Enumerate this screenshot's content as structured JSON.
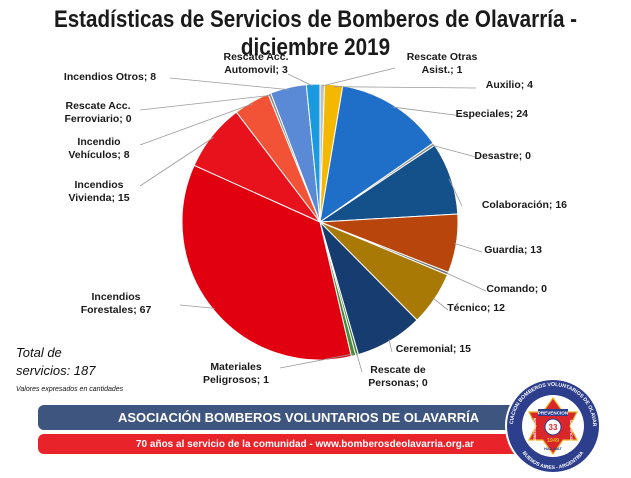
{
  "header": {
    "title": "Estadísticas de Servicios de Bomberos de Olavarría - diciembre 2019"
  },
  "summary": {
    "total_line1": "Total de",
    "total_line2": "servicios: 187",
    "note": "Valores expresados en cantidades"
  },
  "footer": {
    "association": "ASOCIACIÓN BOMBEROS VOLUNTARIOS DE OLAVARRÍA",
    "tagline": "70 años al servicio de la comunidad - www.bomberosdeolavarria.org.ar"
  },
  "logo": {
    "ring_text": "ASOCIACION BOMBEROS VOLUNTARIOS DE OLAVARRIA",
    "lower_text": "BUENOS AIRES - ARGENTINA",
    "left_band": "ABNEGACION",
    "right_band": "SACRIFICIO",
    "top_band": "PREVENCION",
    "year": "1949",
    "bottom_band": "HAZ-MAT",
    "center_number": "33",
    "colors": {
      "navy": "#2d3e8c",
      "red": "#d9262b",
      "gold": "#e6b422"
    }
  },
  "chart_data": {
    "type": "pie",
    "title": "Estadísticas de Servicios de Bomberos de Olavarría - diciembre 2019",
    "slices": [
      {
        "label": "Rescate Otras Asist.; 1",
        "name": "Rescate Otras Asist.",
        "value": 1,
        "color": "#c0c0c0"
      },
      {
        "label": "Auxilio; 4",
        "name": "Auxilio",
        "value": 4,
        "color": "#f5b800"
      },
      {
        "label": "Especiales; 24",
        "name": "Especiales",
        "value": 24,
        "color": "#1f6fc9"
      },
      {
        "label": "Desastre; 0",
        "name": "Desastre",
        "value": 0,
        "color": "#8a8a8a"
      },
      {
        "label": "Colaboración; 16",
        "name": "Colaboración",
        "value": 16,
        "color": "#14508a"
      },
      {
        "label": "Guardia; 13",
        "name": "Guardia",
        "value": 13,
        "color": "#b8460c"
      },
      {
        "label": "Comando; 0",
        "name": "Comando",
        "value": 0,
        "color": "#707070"
      },
      {
        "label": "Técnico; 12",
        "name": "Técnico",
        "value": 12,
        "color": "#a87a05"
      },
      {
        "label": "Ceremonial; 15",
        "name": "Ceremonial",
        "value": 15,
        "color": "#173c70"
      },
      {
        "label": "Rescate de Personas; 0",
        "name": "Rescate de Personas",
        "value": 0,
        "color": "#3a7a3a"
      },
      {
        "label": "Materiales Peligrosos; 1",
        "name": "Materiales Peligrosos",
        "value": 1,
        "color": "#4a8a3a"
      },
      {
        "label": "Incendios Forestales; 67",
        "name": "Incendios Forestales",
        "value": 67,
        "color": "#e00010"
      },
      {
        "label": "Incendios Vivienda; 15",
        "name": "Incendios Vivienda",
        "value": 15,
        "color": "#e8121c"
      },
      {
        "label": "Incendio Vehículos; 8",
        "name": "Incendio Vehículos",
        "value": 8,
        "color": "#f25236"
      },
      {
        "label": "Rescate Acc. Ferroviario; 0",
        "name": "Rescate Acc. Ferroviario",
        "value": 0,
        "color": "#888888"
      },
      {
        "label": "Incendios Otros; 8",
        "name": "Incendios Otros",
        "value": 8,
        "color": "#5a8ad6"
      },
      {
        "label": "Rescate Acc. Automovil; 3",
        "name": "Rescate Acc. Automovil",
        "value": 3,
        "color": "#1a9be0"
      }
    ],
    "legend": "none",
    "labels_placement": "outside with leader lines"
  }
}
